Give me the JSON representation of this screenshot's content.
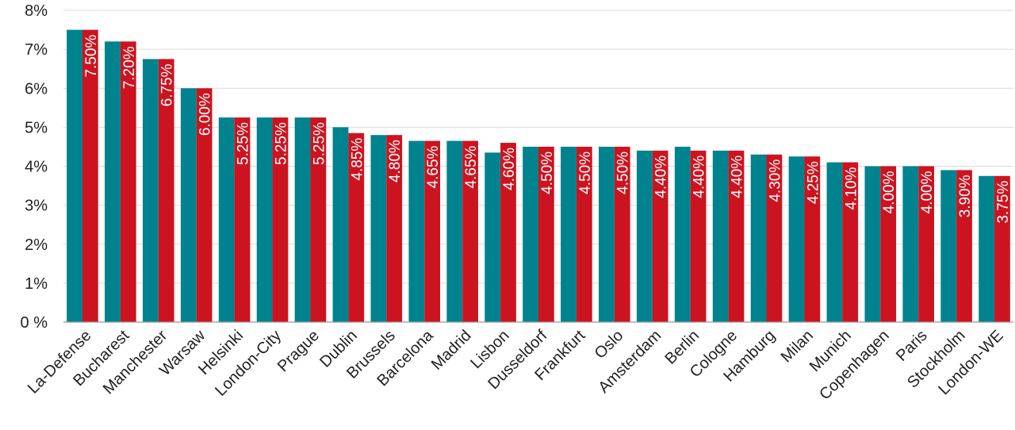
{
  "chart_data": {
    "type": "bar",
    "categories": [
      "La-Defense",
      "Bucharest",
      "Manchester",
      "Warsaw",
      "Helsinki",
      "London-City",
      "Prague",
      "Dublin",
      "Brussels",
      "Barcelona",
      "Madrid",
      "Lisbon",
      "Dusseldorf",
      "Frankfurt",
      "Oslo",
      "Amsterdam",
      "Berlin",
      "Cologne",
      "Hamburg",
      "Milan",
      "Munich",
      "Copenhagen",
      "Paris",
      "Stockholm",
      "London-WE"
    ],
    "series": [
      {
        "values": [
          7.5,
          7.2,
          6.75,
          6.0,
          5.25,
          5.25,
          5.25,
          5.0,
          4.8,
          4.65,
          4.65,
          4.35,
          4.5,
          4.5,
          4.5,
          4.4,
          4.5,
          4.4,
          4.3,
          4.25,
          4.1,
          4.0,
          4.0,
          3.9,
          3.75
        ],
        "color": "#00838f",
        "labels_shown": false
      },
      {
        "values": [
          7.5,
          7.2,
          6.75,
          6.0,
          5.25,
          5.25,
          5.25,
          4.85,
          4.8,
          4.65,
          4.65,
          4.6,
          4.5,
          4.5,
          4.5,
          4.4,
          4.4,
          4.4,
          4.3,
          4.25,
          4.1,
          4.0,
          4.0,
          3.9,
          3.75
        ],
        "color": "#cc1420",
        "labels_shown": true,
        "data_labels": [
          "7.50%",
          "7.20%",
          "6.75%",
          "6.00%",
          "5.25%",
          "5.25%",
          "5.25%",
          "4.85%",
          "4.80%",
          "4.65%",
          "4.65%",
          "4.60%",
          "4.50%",
          "4.50%",
          "4.50%",
          "4.40%",
          "4.40%",
          "4.40%",
          "4.30%",
          "4.25%",
          "4.10%",
          "4.00%",
          "4.00%",
          "3.90%",
          "3.75%"
        ]
      }
    ],
    "y_ticks": [
      "0 %",
      "1%",
      "2%",
      "3%",
      "4%",
      "5%",
      "6%",
      "7%",
      "8%"
    ],
    "ylim": [
      0,
      8
    ],
    "grid": true,
    "gridline_color": "#d9d9d9",
    "axis_color": "#999999"
  }
}
